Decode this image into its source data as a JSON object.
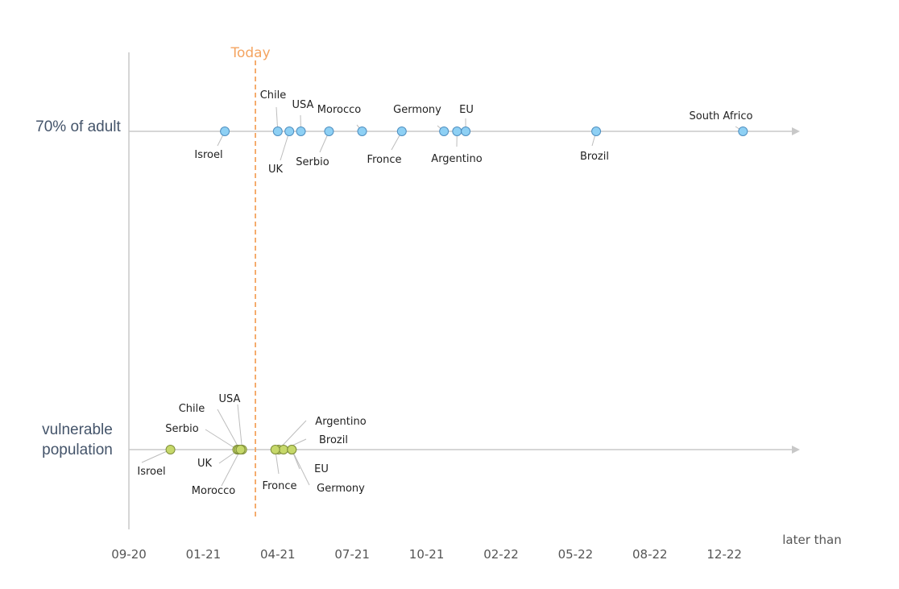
{
  "chart_data": {
    "type": "scatter",
    "title": "",
    "xlabel": "later than",
    "x_ticks": [
      "09-20",
      "01-21",
      "04-21",
      "07-21",
      "10-21",
      "02-22",
      "05-22",
      "08-22",
      "12-22"
    ],
    "tick_dates": [
      "2020-09-01",
      "2021-01-01",
      "2021-04-01",
      "2021-07-01",
      "2021-10-01",
      "2022-02-01",
      "2022-05-01",
      "2022-08-01",
      "2022-12-01"
    ],
    "grid": false,
    "legend": "none",
    "today": {
      "label": "Today",
      "date": "2021-03-04",
      "color": "#f4a460"
    },
    "series": [
      {
        "name": "70% of adult",
        "color": "#8ed0f4",
        "stroke": "#4f8fc0",
        "points": [
          {
            "label": "Isroel",
            "date": "2021-01-27"
          },
          {
            "label": "Chile",
            "date": "2021-04-01"
          },
          {
            "label": "UK",
            "date": "2021-04-15"
          },
          {
            "label": "USA",
            "date": "2021-04-29"
          },
          {
            "label": "Serbio",
            "date": "2021-06-03"
          },
          {
            "label": "Morocco",
            "date": "2021-07-13"
          },
          {
            "label": "Fronce",
            "date": "2021-09-01"
          },
          {
            "label": "Germony",
            "date": "2021-10-29"
          },
          {
            "label": "Argentino",
            "date": "2021-11-20"
          },
          {
            "label": "EU",
            "date": "2021-12-04"
          },
          {
            "label": "Brozil",
            "date": "2022-05-26"
          },
          {
            "label": "South Africo",
            "date": "2023-01-01"
          }
        ]
      },
      {
        "name": "vulnerable population",
        "color": "#c6d86a",
        "stroke": "#7f8f3a",
        "points": [
          {
            "label": "Isroel",
            "date": "2020-11-08"
          },
          {
            "label": "Serbio",
            "date": "2021-02-12"
          },
          {
            "label": "Chile",
            "date": "2021-02-15"
          },
          {
            "label": "USA",
            "date": "2021-02-18"
          },
          {
            "label": "UK",
            "date": "2021-02-14"
          },
          {
            "label": "Morocco",
            "date": "2021-02-16"
          },
          {
            "label": "Argentino",
            "date": "2021-04-02"
          },
          {
            "label": "Brozil",
            "date": "2021-04-08"
          },
          {
            "label": "Fronce",
            "date": "2021-03-28"
          },
          {
            "label": "EU",
            "date": "2021-04-18"
          },
          {
            "label": "Germony",
            "date": "2021-04-18"
          }
        ]
      }
    ]
  }
}
